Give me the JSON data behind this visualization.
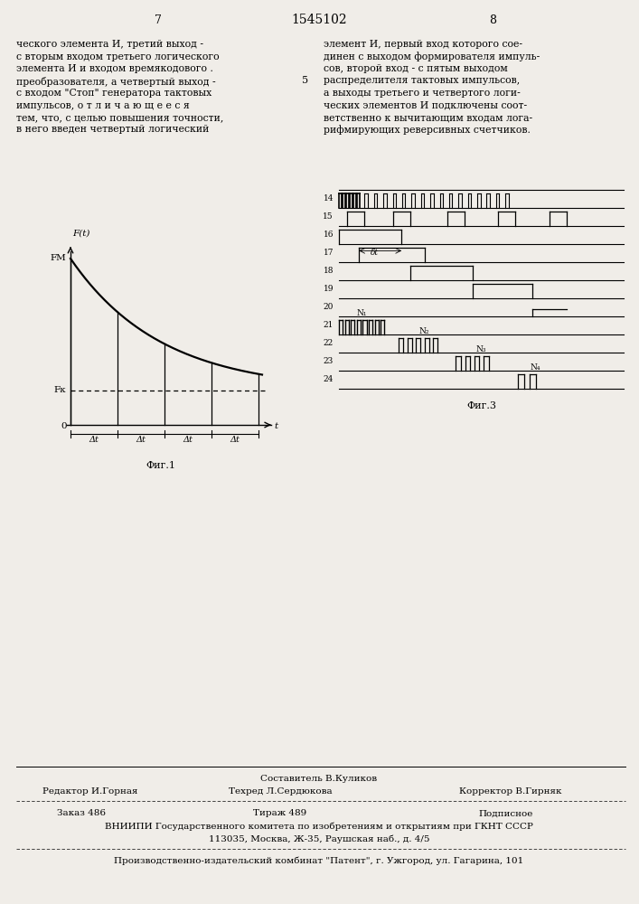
{
  "page_number_left": "7",
  "page_number_center": "1545102",
  "page_number_right": "8",
  "left_text": [
    "ческого элемента И, третий выход -",
    "с вторым входом третьего логического",
    "элемента И и входом времякодового .",
    "преобразователя, а четвертый выход -",
    "с входом \"Стоп\" генератора тактовых",
    "импульсов, о т л и ч а ю щ е е с я",
    "тем, что, с целью повышения точности,",
    "в него введен четвертый логический"
  ],
  "right_text": [
    "элемент И, первый вход которого сое-",
    "динен с выходом формирователя импуль-",
    "сов, второй вход - с пятым выходом",
    "распределителя тактовых импульсов,",
    "а выходы третьего и четвертого логи-",
    "ческих элементов И подключены соот-",
    "ветственно к вычитающим входам лога-",
    "рифмирующих реверсивных счетчиков."
  ],
  "fig1_caption": "Фиг.1",
  "fig2_caption": "Фиг.3",
  "fig2_row_labels": [
    "14",
    "15",
    "16",
    "17",
    "18",
    "19",
    "20",
    "21",
    "22",
    "23",
    "24"
  ],
  "fig2_n1_label": "N₁",
  "fig2_n2_label": "N₂",
  "fig2_n3_label": "N₃",
  "fig2_n4_label": "N₄",
  "footer_editor": "Редактор И.Горная",
  "footer_composer": "Составитель В.Куликов",
  "footer_techred": "Техред Л.Сердюкова",
  "footer_corrector": "Корректор В.Гирняк",
  "footer_order": "Заказ 486",
  "footer_circulation": "Тираж 489",
  "footer_subscription": "Подписное",
  "footer_vniip": "ВНИИПИ Государственного комитета по изобретениям и открытиям при ГКНТ СССР",
  "footer_address": "113035, Москва, Ж-35, Раушская наб., д. 4/5",
  "footer_plant": "Производственно-издательский комбинат \"Патент\", г. Ужгород, ул. Гагарина, 101",
  "bg_color": "#f0ede8",
  "num_5": "5"
}
